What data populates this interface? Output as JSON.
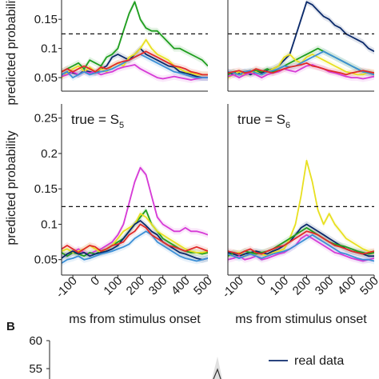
{
  "chart_data": [
    {
      "type": "line",
      "panel": "top-left (cropped)",
      "title": "",
      "xlabel": "",
      "ylabel": "predicted probability",
      "xlim": [
        -150,
        500
      ],
      "ylim": [
        0.035,
        0.19
      ],
      "yticks": [
        "0.05",
        "0.1",
        "0.15"
      ],
      "threshold": 0.125,
      "x": [
        -150,
        -125,
        -100,
        -75,
        -50,
        -25,
        0,
        25,
        50,
        75,
        100,
        125,
        150,
        175,
        200,
        225,
        250,
        275,
        300,
        325,
        350,
        375,
        400,
        425,
        450,
        475,
        500
      ],
      "series": [
        {
          "color": "#1f9e1f",
          "values": [
            0.06,
            0.065,
            0.07,
            0.075,
            0.065,
            0.08,
            0.075,
            0.07,
            0.085,
            0.09,
            0.1,
            0.13,
            0.16,
            0.18,
            0.15,
            0.135,
            0.13,
            0.13,
            0.12,
            0.11,
            0.1,
            0.1,
            0.095,
            0.09,
            0.085,
            0.08,
            0.07
          ]
        },
        {
          "color": "#0b2a6b",
          "values": [
            0.055,
            0.06,
            0.058,
            0.055,
            0.062,
            0.06,
            0.058,
            0.065,
            0.07,
            0.085,
            0.09,
            0.085,
            0.08,
            0.09,
            0.1,
            0.09,
            0.085,
            0.08,
            0.075,
            0.07,
            0.068,
            0.06,
            0.058,
            0.055,
            0.052,
            0.05,
            0.05
          ]
        },
        {
          "color": "#e8e020",
          "values": [
            0.05,
            0.058,
            0.065,
            0.07,
            0.06,
            0.068,
            0.06,
            0.065,
            0.06,
            0.07,
            0.075,
            0.07,
            0.085,
            0.09,
            0.1,
            0.115,
            0.1,
            0.09,
            0.085,
            0.08,
            0.07,
            0.065,
            0.06,
            0.058,
            0.055,
            0.055,
            0.055
          ]
        },
        {
          "color": "#d63ad6",
          "values": [
            0.052,
            0.055,
            0.06,
            0.055,
            0.06,
            0.058,
            0.06,
            0.055,
            0.058,
            0.06,
            0.065,
            0.068,
            0.07,
            0.072,
            0.065,
            0.06,
            0.055,
            0.05,
            0.048,
            0.05,
            0.052,
            0.05,
            0.048,
            0.046,
            0.048,
            0.05,
            0.05
          ]
        },
        {
          "color": "#3b8fd6",
          "values": [
            0.055,
            0.06,
            0.05,
            0.055,
            0.06,
            0.055,
            0.058,
            0.06,
            0.062,
            0.065,
            0.07,
            0.075,
            0.08,
            0.085,
            0.09,
            0.085,
            0.08,
            0.075,
            0.07,
            0.065,
            0.06,
            0.058,
            0.055,
            0.052,
            0.05,
            0.05,
            0.05
          ]
        },
        {
          "color": "#e02a2a",
          "values": [
            0.06,
            0.065,
            0.06,
            0.065,
            0.07,
            0.065,
            0.06,
            0.068,
            0.065,
            0.07,
            0.075,
            0.078,
            0.08,
            0.085,
            0.09,
            0.095,
            0.09,
            0.085,
            0.08,
            0.075,
            0.07,
            0.068,
            0.065,
            0.06,
            0.058,
            0.055,
            0.055
          ]
        }
      ]
    },
    {
      "type": "line",
      "panel": "top-right (cropped)",
      "title": "",
      "xlabel": "",
      "ylabel": "",
      "xlim": [
        -150,
        500
      ],
      "ylim": [
        0.035,
        0.19
      ],
      "threshold": 0.125,
      "x": [
        -150,
        -125,
        -100,
        -75,
        -50,
        -25,
        0,
        25,
        50,
        75,
        100,
        125,
        150,
        175,
        200,
        225,
        250,
        275,
        300,
        325,
        350,
        375,
        400,
        425,
        450,
        475,
        500
      ],
      "series": [
        {
          "color": "#0b2a6b",
          "values": [
            0.06,
            0.055,
            0.058,
            0.06,
            0.055,
            0.06,
            0.058,
            0.062,
            0.065,
            0.07,
            0.08,
            0.09,
            0.12,
            0.15,
            0.18,
            0.175,
            0.165,
            0.155,
            0.15,
            0.14,
            0.135,
            0.125,
            0.12,
            0.115,
            0.11,
            0.1,
            0.095
          ]
        },
        {
          "color": "#1f9e1f",
          "values": [
            0.055,
            0.06,
            0.055,
            0.058,
            0.06,
            0.062,
            0.06,
            0.065,
            0.06,
            0.065,
            0.07,
            0.075,
            0.08,
            0.085,
            0.09,
            0.095,
            0.1,
            0.095,
            0.09,
            0.085,
            0.08,
            0.075,
            0.07,
            0.065,
            0.06,
            0.058,
            0.055
          ]
        },
        {
          "color": "#e8e020",
          "values": [
            0.05,
            0.055,
            0.06,
            0.055,
            0.058,
            0.06,
            0.055,
            0.06,
            0.065,
            0.07,
            0.085,
            0.09,
            0.08,
            0.075,
            0.085,
            0.09,
            0.085,
            0.08,
            0.075,
            0.07,
            0.065,
            0.06,
            0.058,
            0.055,
            0.055,
            0.06,
            0.058
          ]
        },
        {
          "color": "#3b8fd6",
          "values": [
            0.06,
            0.058,
            0.055,
            0.06,
            0.062,
            0.058,
            0.055,
            0.06,
            0.062,
            0.065,
            0.07,
            0.068,
            0.07,
            0.075,
            0.08,
            0.085,
            0.09,
            0.095,
            0.09,
            0.085,
            0.08,
            0.075,
            0.07,
            0.065,
            0.06,
            0.058,
            0.055
          ]
        },
        {
          "color": "#d63ad6",
          "values": [
            0.052,
            0.055,
            0.05,
            0.055,
            0.058,
            0.055,
            0.05,
            0.055,
            0.058,
            0.06,
            0.065,
            0.062,
            0.06,
            0.065,
            0.07,
            0.072,
            0.068,
            0.065,
            0.06,
            0.058,
            0.055,
            0.052,
            0.05,
            0.05,
            0.048,
            0.05,
            0.052
          ]
        },
        {
          "color": "#e02a2a",
          "values": [
            0.058,
            0.06,
            0.062,
            0.058,
            0.06,
            0.065,
            0.062,
            0.06,
            0.058,
            0.062,
            0.065,
            0.068,
            0.07,
            0.072,
            0.075,
            0.07,
            0.068,
            0.065,
            0.062,
            0.06,
            0.058,
            0.055,
            0.058,
            0.06,
            0.062,
            0.06,
            0.058
          ]
        }
      ]
    },
    {
      "type": "line",
      "panel": "bottom-left",
      "title": "true = S",
      "title_subscript": "5",
      "xlabel": "ms from stimulus onset",
      "ylabel": "predicted probability",
      "xlim": [
        -150,
        500
      ],
      "ylim": [
        0.035,
        0.27
      ],
      "xticks": [
        "-100",
        "0",
        "100",
        "200",
        "300",
        "400",
        "500"
      ],
      "yticks": [
        "0.05",
        "0.1",
        "0.15",
        "0.2",
        "0.25"
      ],
      "threshold": 0.125,
      "x": [
        -150,
        -125,
        -100,
        -75,
        -50,
        -25,
        0,
        25,
        50,
        75,
        100,
        125,
        150,
        175,
        200,
        225,
        250,
        275,
        300,
        325,
        350,
        375,
        400,
        425,
        450,
        475,
        500
      ],
      "series": [
        {
          "color": "#d63ad6",
          "values": [
            0.06,
            0.055,
            0.06,
            0.065,
            0.06,
            0.058,
            0.062,
            0.065,
            0.07,
            0.075,
            0.085,
            0.1,
            0.13,
            0.16,
            0.18,
            0.17,
            0.14,
            0.11,
            0.1,
            0.095,
            0.09,
            0.09,
            0.095,
            0.09,
            0.09,
            0.088,
            0.085
          ]
        },
        {
          "color": "#1f9e1f",
          "values": [
            0.06,
            0.055,
            0.06,
            0.058,
            0.055,
            0.06,
            0.058,
            0.062,
            0.065,
            0.07,
            0.075,
            0.08,
            0.09,
            0.1,
            0.11,
            0.12,
            0.1,
            0.09,
            0.08,
            0.075,
            0.07,
            0.065,
            0.062,
            0.06,
            0.06,
            0.058,
            0.06
          ]
        },
        {
          "color": "#e8e020",
          "values": [
            0.062,
            0.065,
            0.06,
            0.062,
            0.065,
            0.07,
            0.065,
            0.06,
            0.065,
            0.07,
            0.08,
            0.09,
            0.095,
            0.1,
            0.115,
            0.11,
            0.1,
            0.09,
            0.085,
            0.08,
            0.075,
            0.07,
            0.065,
            0.062,
            0.06,
            0.06,
            0.062
          ]
        },
        {
          "color": "#0b2a6b",
          "values": [
            0.052,
            0.058,
            0.062,
            0.058,
            0.06,
            0.055,
            0.058,
            0.06,
            0.062,
            0.065,
            0.07,
            0.08,
            0.09,
            0.1,
            0.105,
            0.098,
            0.09,
            0.085,
            0.075,
            0.07,
            0.065,
            0.06,
            0.058,
            0.055,
            0.052,
            0.05,
            0.052
          ]
        },
        {
          "color": "#3b8fd6",
          "values": [
            0.045,
            0.05,
            0.052,
            0.055,
            0.05,
            0.052,
            0.055,
            0.058,
            0.06,
            0.062,
            0.065,
            0.068,
            0.072,
            0.08,
            0.085,
            0.09,
            0.085,
            0.075,
            0.07,
            0.065,
            0.06,
            0.055,
            0.052,
            0.05,
            0.048,
            0.05,
            0.052
          ]
        },
        {
          "color": "#e02a2a",
          "values": [
            0.065,
            0.07,
            0.065,
            0.06,
            0.065,
            0.07,
            0.068,
            0.062,
            0.065,
            0.07,
            0.072,
            0.075,
            0.085,
            0.09,
            0.1,
            0.095,
            0.085,
            0.08,
            0.075,
            0.07,
            0.068,
            0.065,
            0.062,
            0.065,
            0.068,
            0.065,
            0.062
          ]
        }
      ]
    },
    {
      "type": "line",
      "panel": "bottom-right",
      "title": "true = S",
      "title_subscript": "6",
      "xlabel": "ms from stimulus onset",
      "ylabel": "",
      "xlim": [
        -150,
        500
      ],
      "ylim": [
        0.035,
        0.27
      ],
      "xticks": [
        "-100",
        "0",
        "100",
        "200",
        "300",
        "400",
        "500"
      ],
      "threshold": 0.125,
      "x": [
        -150,
        -125,
        -100,
        -75,
        -50,
        -25,
        0,
        25,
        50,
        75,
        100,
        125,
        150,
        175,
        200,
        225,
        250,
        275,
        300,
        325,
        350,
        375,
        400,
        425,
        450,
        475,
        500
      ],
      "series": [
        {
          "color": "#e8e020",
          "values": [
            0.055,
            0.058,
            0.06,
            0.055,
            0.058,
            0.06,
            0.058,
            0.055,
            0.06,
            0.062,
            0.065,
            0.08,
            0.1,
            0.14,
            0.19,
            0.16,
            0.12,
            0.1,
            0.115,
            0.1,
            0.09,
            0.08,
            0.075,
            0.07,
            0.065,
            0.062,
            0.06
          ]
        },
        {
          "color": "#0b2a6b",
          "values": [
            0.06,
            0.058,
            0.055,
            0.058,
            0.06,
            0.062,
            0.06,
            0.058,
            0.062,
            0.065,
            0.07,
            0.075,
            0.085,
            0.095,
            0.1,
            0.095,
            0.09,
            0.085,
            0.08,
            0.075,
            0.07,
            0.065,
            0.062,
            0.06,
            0.058,
            0.055,
            0.055
          ]
        },
        {
          "color": "#1f9e1f",
          "values": [
            0.055,
            0.06,
            0.058,
            0.062,
            0.06,
            0.058,
            0.06,
            0.062,
            0.065,
            0.07,
            0.075,
            0.08,
            0.085,
            0.09,
            0.095,
            0.09,
            0.085,
            0.08,
            0.075,
            0.072,
            0.07,
            0.068,
            0.065,
            0.062,
            0.06,
            0.058,
            0.06
          ]
        },
        {
          "color": "#d63ad6",
          "values": [
            0.05,
            0.052,
            0.055,
            0.05,
            0.052,
            0.055,
            0.05,
            0.052,
            0.055,
            0.058,
            0.06,
            0.065,
            0.07,
            0.08,
            0.085,
            0.08,
            0.075,
            0.07,
            0.065,
            0.06,
            0.058,
            0.055,
            0.052,
            0.05,
            0.048,
            0.05,
            0.052
          ]
        },
        {
          "color": "#3b8fd6",
          "values": [
            0.058,
            0.055,
            0.052,
            0.055,
            0.058,
            0.055,
            0.052,
            0.055,
            0.058,
            0.06,
            0.062,
            0.065,
            0.07,
            0.075,
            0.08,
            0.085,
            0.08,
            0.075,
            0.07,
            0.065,
            0.06,
            0.058,
            0.055,
            0.052,
            0.05,
            0.05,
            0.048
          ]
        },
        {
          "color": "#e02a2a",
          "values": [
            0.062,
            0.06,
            0.058,
            0.062,
            0.065,
            0.06,
            0.058,
            0.062,
            0.065,
            0.068,
            0.07,
            0.075,
            0.08,
            0.085,
            0.09,
            0.088,
            0.085,
            0.08,
            0.075,
            0.07,
            0.068,
            0.065,
            0.062,
            0.06,
            0.058,
            0.06,
            0.062
          ]
        }
      ]
    },
    {
      "type": "line",
      "panel": "B (cropped)",
      "panel_label": "B",
      "title": "",
      "ylabel": "",
      "ylim": [
        52.5,
        60
      ],
      "yticks": [
        "60",
        "55"
      ],
      "legend": [
        "real data"
      ],
      "legend_position": "top-right",
      "series": [
        {
          "name": "real data",
          "color": "#0b2a6b",
          "values": []
        }
      ]
    }
  ]
}
